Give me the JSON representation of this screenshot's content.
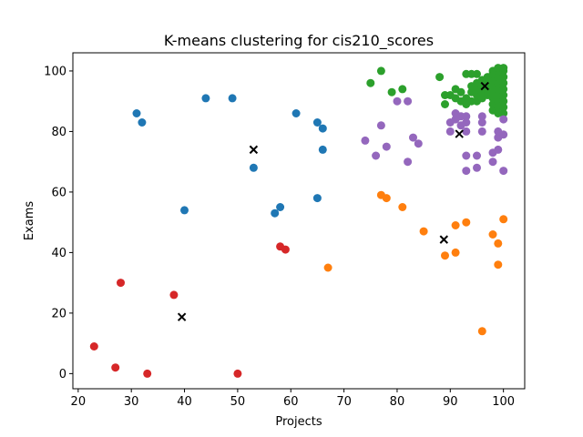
{
  "chart_data": {
    "type": "scatter",
    "title": "K-means clustering for cis210_scores",
    "xlabel": "Projects",
    "ylabel": "Exams",
    "xlim": [
      19,
      104
    ],
    "ylim": [
      -5,
      106
    ],
    "xticks": [
      20,
      30,
      40,
      50,
      60,
      70,
      80,
      90,
      100
    ],
    "yticks": [
      0,
      20,
      40,
      60,
      80,
      100
    ],
    "grid": false,
    "legend": "none",
    "series": [
      {
        "color": "#1f77b4",
        "points": [
          [
            31,
            86
          ],
          [
            32,
            83
          ],
          [
            40,
            54
          ],
          [
            44,
            91
          ],
          [
            49,
            91
          ],
          [
            53,
            68
          ],
          [
            57,
            53
          ],
          [
            58,
            55
          ],
          [
            61,
            86
          ],
          [
            65,
            83
          ],
          [
            66,
            81
          ],
          [
            66,
            74
          ],
          [
            65,
            58
          ]
        ]
      },
      {
        "color": "#ff7f0e",
        "points": [
          [
            67,
            35
          ],
          [
            77,
            59
          ],
          [
            78,
            58
          ],
          [
            81,
            55
          ],
          [
            85,
            47
          ],
          [
            89,
            39
          ],
          [
            91,
            40
          ],
          [
            91,
            49
          ],
          [
            93,
            50
          ],
          [
            96,
            14
          ],
          [
            98,
            46
          ],
          [
            99,
            43
          ],
          [
            99,
            36
          ],
          [
            100,
            51
          ]
        ]
      },
      {
        "color": "#2ca02c",
        "points": [
          [
            75,
            96
          ],
          [
            77,
            100
          ],
          [
            79,
            93
          ],
          [
            81,
            94
          ],
          [
            88,
            98
          ],
          [
            89,
            92
          ],
          [
            89,
            89
          ],
          [
            90,
            92
          ],
          [
            91,
            91
          ],
          [
            91,
            94
          ],
          [
            92,
            90
          ],
          [
            92,
            93
          ],
          [
            93,
            89
          ],
          [
            93,
            91
          ],
          [
            93,
            99
          ],
          [
            94,
            90
          ],
          [
            94,
            93
          ],
          [
            94,
            95
          ],
          [
            94,
            99
          ],
          [
            95,
            90
          ],
          [
            95,
            92
          ],
          [
            95,
            94
          ],
          [
            95,
            96
          ],
          [
            95,
            99
          ],
          [
            96,
            91
          ],
          [
            96,
            93
          ],
          [
            96,
            95
          ],
          [
            96,
            97
          ],
          [
            97,
            92
          ],
          [
            97,
            94
          ],
          [
            97,
            96
          ],
          [
            97,
            98
          ],
          [
            98,
            87
          ],
          [
            98,
            89
          ],
          [
            98,
            91
          ],
          [
            98,
            93
          ],
          [
            98,
            95
          ],
          [
            98,
            97
          ],
          [
            98,
            99
          ],
          [
            98,
            100
          ],
          [
            99,
            86
          ],
          [
            99,
            88
          ],
          [
            99,
            90
          ],
          [
            99,
            92
          ],
          [
            99,
            94
          ],
          [
            99,
            96
          ],
          [
            99,
            98
          ],
          [
            99,
            100
          ],
          [
            99,
            101
          ],
          [
            100,
            86
          ],
          [
            100,
            88
          ],
          [
            100,
            90
          ],
          [
            100,
            92
          ],
          [
            100,
            94
          ],
          [
            100,
            96
          ],
          [
            100,
            98
          ],
          [
            100,
            100
          ],
          [
            100,
            101
          ]
        ]
      },
      {
        "color": "#d62728",
        "points": [
          [
            23,
            9
          ],
          [
            27,
            2
          ],
          [
            28,
            30
          ],
          [
            33,
            0
          ],
          [
            38,
            26
          ],
          [
            50,
            0
          ],
          [
            58,
            42
          ],
          [
            59,
            41
          ]
        ]
      },
      {
        "color": "#9467bd",
        "points": [
          [
            74,
            77
          ],
          [
            76,
            72
          ],
          [
            77,
            82
          ],
          [
            78,
            75
          ],
          [
            80,
            90
          ],
          [
            82,
            90
          ],
          [
            82,
            70
          ],
          [
            83,
            78
          ],
          [
            84,
            76
          ],
          [
            90,
            80
          ],
          [
            90,
            83
          ],
          [
            91,
            84
          ],
          [
            91,
            86
          ],
          [
            92,
            82
          ],
          [
            92,
            85
          ],
          [
            93,
            67
          ],
          [
            93,
            72
          ],
          [
            93,
            80
          ],
          [
            93,
            83
          ],
          [
            93,
            85
          ],
          [
            95,
            72
          ],
          [
            95,
            68
          ],
          [
            96,
            80
          ],
          [
            96,
            83
          ],
          [
            96,
            85
          ],
          [
            98,
            70
          ],
          [
            98,
            73
          ],
          [
            99,
            74
          ],
          [
            99,
            78
          ],
          [
            99,
            80
          ],
          [
            100,
            67
          ],
          [
            100,
            79
          ],
          [
            100,
            84
          ]
        ]
      }
    ],
    "centroids": {
      "color": "#000000",
      "marker": "x",
      "points": [
        [
          53,
          74
        ],
        [
          39.5,
          18.7
        ],
        [
          88.8,
          44.3
        ],
        [
          96.5,
          95
        ],
        [
          91.7,
          79.2
        ]
      ]
    }
  }
}
